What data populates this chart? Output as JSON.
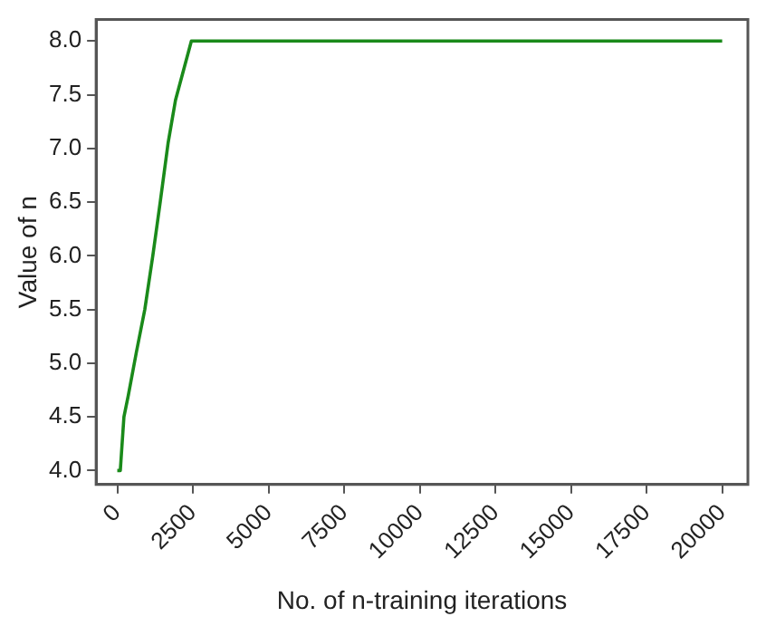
{
  "chart_data": {
    "type": "line",
    "xlabel": "No. of n-training iterations",
    "ylabel": "Value of n",
    "x": [
      0,
      100,
      220,
      365,
      630,
      910,
      1175,
      1420,
      1680,
      1925,
      2450,
      20000
    ],
    "series": [
      {
        "color": "#1a8a1a",
        "values": [
          4.0,
          4.0,
          4.5,
          4.7,
          5.1,
          5.5,
          6.0,
          6.5,
          7.05,
          7.45,
          8.0,
          8.0
        ]
      }
    ],
    "xlim": [
      -700,
      20850
    ],
    "xticks": [
      0,
      2500,
      5000,
      7500,
      10000,
      12500,
      15000,
      17500,
      20000
    ],
    "ylim": [
      3.87,
      8.2
    ],
    "yticks": [
      {
        "value": 4,
        "label": "4.0"
      },
      {
        "value": 4.5,
        "label": "4.5"
      },
      {
        "value": 5,
        "label": "5.0"
      },
      {
        "value": 5.5,
        "label": "5.5"
      },
      {
        "value": 6,
        "label": "6.0"
      },
      {
        "value": 6.5,
        "label": "6.5"
      },
      {
        "value": 7,
        "label": "7.0"
      },
      {
        "value": 7.5,
        "label": "7.5"
      },
      {
        "value": 8,
        "label": "8.0"
      }
    ],
    "grid": false,
    "legend": false,
    "marker": "none",
    "line_style": "solid"
  }
}
